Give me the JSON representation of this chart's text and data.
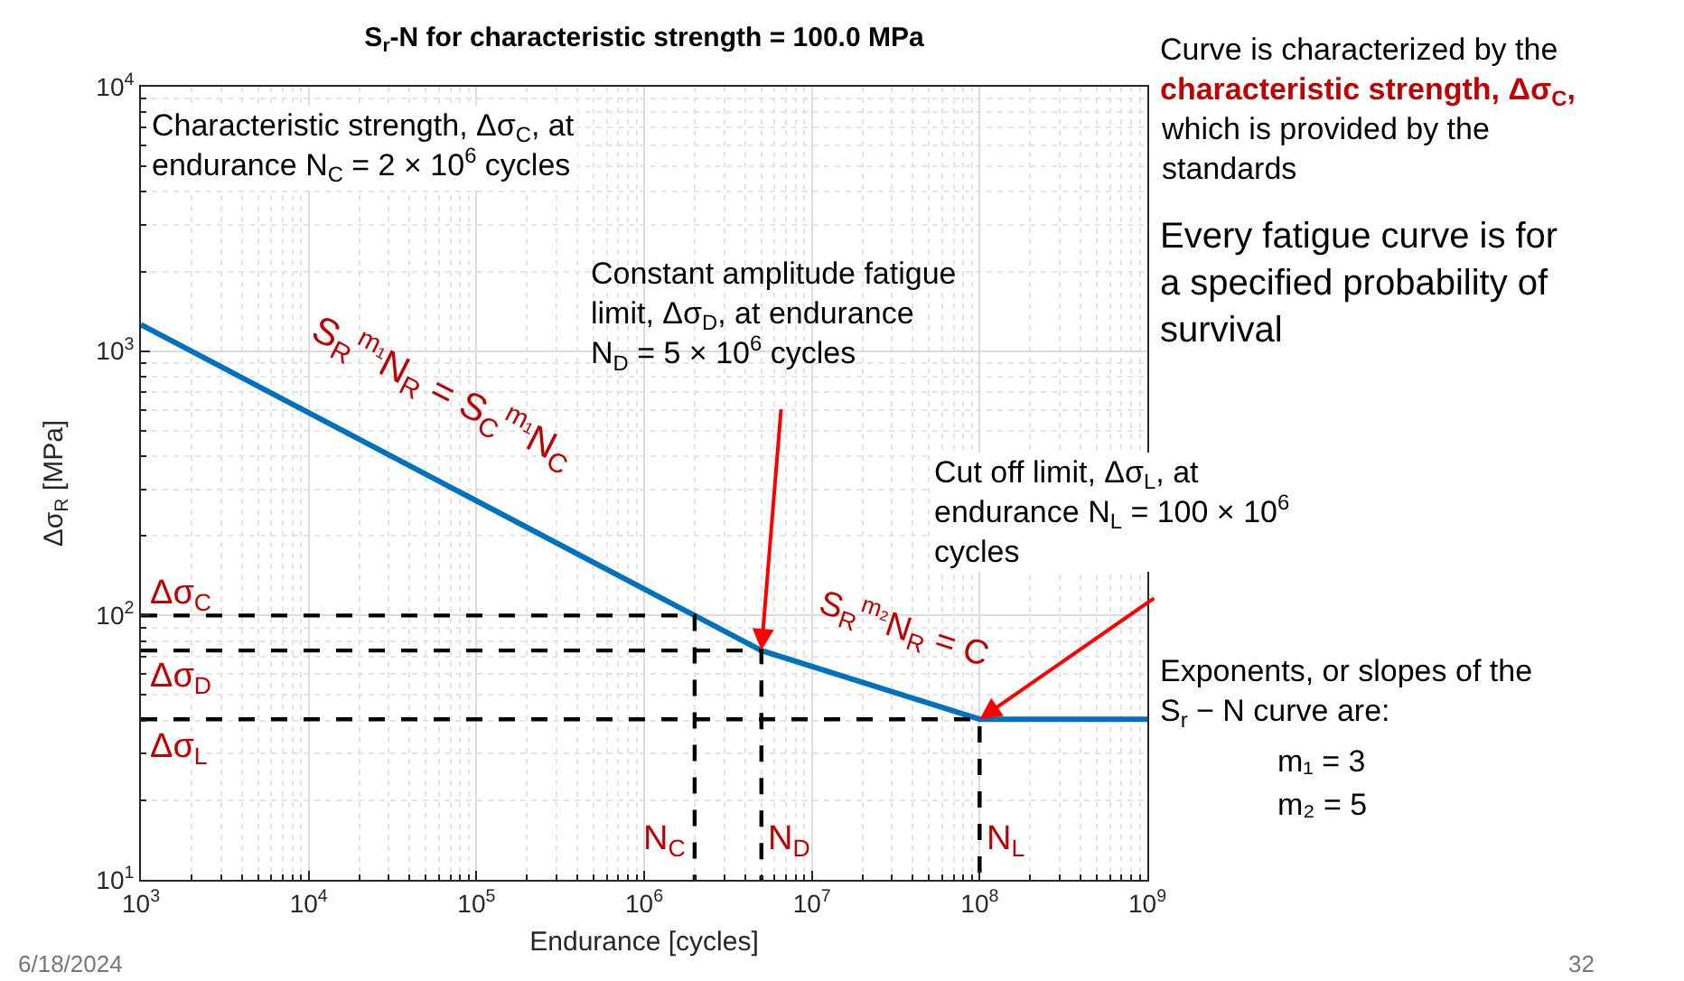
{
  "chart_data": {
    "type": "line",
    "title": "S$_{r}$-N for characteristic strength = 100.0 MPa",
    "xlabel": "Endurance [cycles]",
    "ylabel": "Δσ$_{R}$ [MPa]",
    "log": "xy",
    "grid": true,
    "xlim": [
      1000,
      1000000000
    ],
    "ylim": [
      10,
      10000
    ],
    "xticks": [
      {
        "value": 1000,
        "label": "10$^{3}$"
      },
      {
        "value": 10000,
        "label": "10$^{4}$"
      },
      {
        "value": 100000,
        "label": "10$^{5}$"
      },
      {
        "value": 1000000,
        "label": "10$^{6}$"
      },
      {
        "value": 10000000,
        "label": "10$^{7}$"
      },
      {
        "value": 100000000,
        "label": "10$^{8}$"
      },
      {
        "value": 1000000000,
        "label": "10$^{9}$"
      }
    ],
    "yticks": [
      {
        "value": 10,
        "label": "10$^{1}$"
      },
      {
        "value": 100,
        "label": "10$^{2}$"
      },
      {
        "value": 1000,
        "label": "10$^{3}$"
      },
      {
        "value": 10000,
        "label": "10$^{4}$"
      }
    ],
    "series": [
      {
        "x": [
          1000,
          2000000,
          5000000,
          100000000,
          1000000000
        ],
        "values": [
          1260,
          100,
          73.7,
          40.5,
          40.5
        ],
        "color": "#0072bd",
        "line_style": "solid"
      },
      {
        "x": [
          1000,
          2000000,
          2000000
        ],
        "values": [
          100,
          100,
          10
        ],
        "color": "#000000",
        "line_style": "dashed"
      },
      {
        "x": [
          1000,
          5000000,
          5000000
        ],
        "values": [
          73.7,
          73.7,
          10
        ],
        "color": "#000000",
        "line_style": "dashed"
      },
      {
        "x": [
          1000,
          100000000,
          100000000
        ],
        "values": [
          40.5,
          40.5,
          10
        ],
        "color": "#000000",
        "line_style": "dashed"
      }
    ],
    "annotations": [
      "Characteristic strength, Δσ$_{C}$, at endurance N$_{C}$ = 2 × 10$^{6}$ cycles",
      "Constant amplitude fatigue limit, Δσ$_{D}$, at endurance N$_{D}$ = 5 × 10$^{6}$ cycles",
      "Cut off limit, Δσ$_{L}$, at endurance N$_{L}$ = 100 × 10$^{6}$ cycles",
      "S$_{R}$$^{m₁}$N$_{R}$ = S$_{C}$$^{m₁}$N$_{C}$",
      "S$_{R}$$^{m₂}$N$_{R}$ = C",
      {
        "text": "Δσ$_{C}$",
        "x": 1000,
        "y": 100
      },
      {
        "text": "Δσ$_{D}$",
        "x": 1000,
        "y": 73.7
      },
      {
        "text": "Δσ$_{L}$",
        "x": 1000,
        "y": 40.5
      },
      {
        "text": "N$_{C}$",
        "x": 2000000,
        "y": 10
      },
      {
        "text": "N$_{D}$",
        "x": 5000000,
        "y": 10
      },
      {
        "text": "N$_{L}$",
        "x": 100000000,
        "y": 10
      },
      "Curve is characterized by the",
      "characteristic strength, Δσ$_{C}$,",
      "which is provided by the standards",
      "Every fatigue curve is for a specified probability of survival",
      "Exponents, or slopes of the S$_{r}$ − N curve are:",
      "m₁ = 3",
      "m₂ = 5",
      "6/18/2024",
      "32"
    ]
  }
}
